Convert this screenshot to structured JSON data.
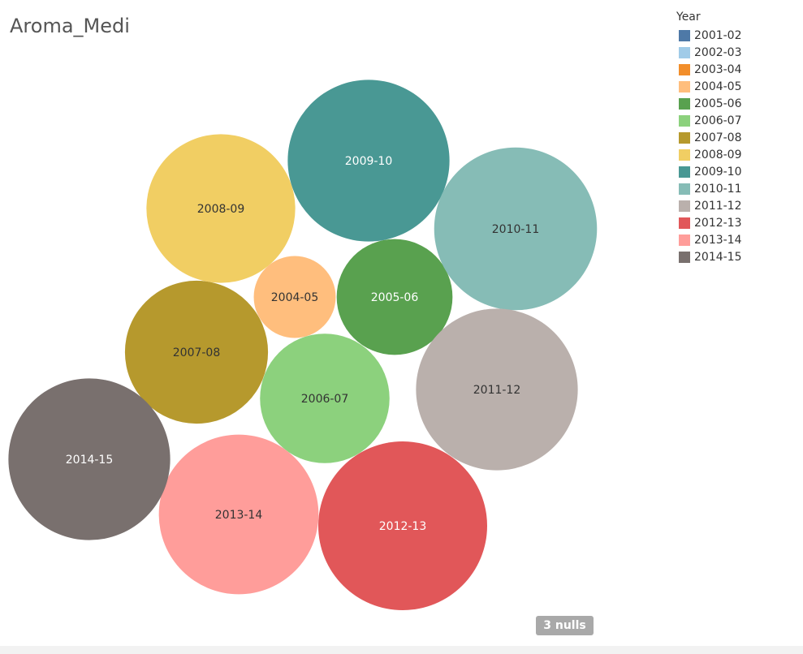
{
  "title": "Aroma_Medi",
  "legend": {
    "title": "Year",
    "items": [
      {
        "label": "2001-02",
        "color": "#4e79a7"
      },
      {
        "label": "2002-03",
        "color": "#a0cbe8"
      },
      {
        "label": "2003-04",
        "color": "#f28e2b"
      },
      {
        "label": "2004-05",
        "color": "#ffbe7d"
      },
      {
        "label": "2005-06",
        "color": "#59a14f"
      },
      {
        "label": "2006-07",
        "color": "#8cd17d"
      },
      {
        "label": "2007-08",
        "color": "#b6992d"
      },
      {
        "label": "2008-09",
        "color": "#f1ce63"
      },
      {
        "label": "2009-10",
        "color": "#499894"
      },
      {
        "label": "2010-11",
        "color": "#86bcb6"
      },
      {
        "label": "2011-12",
        "color": "#bab0ac"
      },
      {
        "label": "2012-13",
        "color": "#e15759"
      },
      {
        "label": "2013-14",
        "color": "#ff9d9a"
      },
      {
        "label": "2014-15",
        "color": "#79706e"
      }
    ]
  },
  "nulls_badge": "3 nulls",
  "chart_data": {
    "type": "bubble",
    "title": "Aroma_Medi",
    "legend_title": "Year",
    "legend_position": "top-right",
    "series": [
      {
        "name": "2004-05",
        "color": "#ffbe7d",
        "text_color": "#333333",
        "value": 10000
      },
      {
        "name": "2005-06",
        "color": "#59a14f",
        "text_color": "#ffffff",
        "value": 20000
      },
      {
        "name": "2006-07",
        "color": "#8cd17d",
        "text_color": "#333333",
        "value": 25000
      },
      {
        "name": "2007-08",
        "color": "#b6992d",
        "text_color": "#333333",
        "value": 30500
      },
      {
        "name": "2008-09",
        "color": "#f1ce63",
        "text_color": "#333333",
        "value": 33000
      },
      {
        "name": "2009-10",
        "color": "#499894",
        "text_color": "#ffffff",
        "value": 39000
      },
      {
        "name": "2010-11",
        "color": "#86bcb6",
        "text_color": "#333333",
        "value": 39500
      },
      {
        "name": "2011-12",
        "color": "#bab0ac",
        "text_color": "#333333",
        "value": 39000
      },
      {
        "name": "2012-13",
        "color": "#e15759",
        "text_color": "#ffffff",
        "value": 42500
      },
      {
        "name": "2013-14",
        "color": "#ff9d9a",
        "text_color": "#333333",
        "value": 38000
      },
      {
        "name": "2014-15",
        "color": "#79706e",
        "text_color": "#ffffff",
        "value": 39000
      }
    ],
    "null_count": 3
  }
}
